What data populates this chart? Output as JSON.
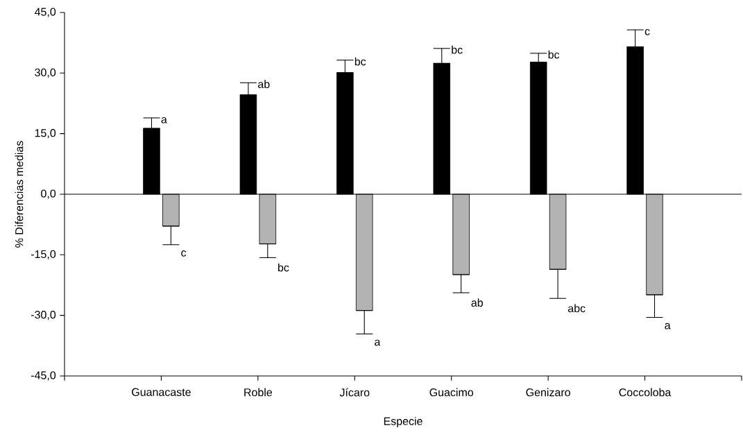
{
  "chart_data": {
    "type": "bar",
    "xlabel": "Especie",
    "ylabel": "% Diferencias medias",
    "categories": [
      "Guanacaste",
      "Roble",
      "Jícaro",
      "Guacimo",
      "Genizaro",
      "Coccoloba"
    ],
    "series": [
      {
        "color": "#000000",
        "values": [
          16.3,
          24.6,
          30.1,
          32.4,
          32.7,
          36.5
        ],
        "errors": [
          [
            16.3,
            18.9
          ],
          [
            24.6,
            27.6
          ],
          [
            30.1,
            33.2
          ],
          [
            32.4,
            36.1
          ],
          [
            32.7,
            34.9
          ],
          [
            36.5,
            40.7
          ]
        ]
      },
      {
        "color": "#b3b3b3",
        "values": [
          -7.9,
          -12.3,
          -28.8,
          -19.9,
          -18.6,
          -24.9
        ],
        "errors": [
          [
            -12.5,
            -7.9
          ],
          [
            -15.7,
            -12.3
          ],
          [
            -34.6,
            -28.8
          ],
          [
            -24.4,
            -19.9
          ],
          [
            -25.8,
            -18.6
          ],
          [
            -30.5,
            -24.9
          ]
        ]
      }
    ],
    "ylim": [
      -45,
      45
    ],
    "yticks": [
      {
        "value": -45,
        "label": "-45,0"
      },
      {
        "value": -30,
        "label": "-30,0"
      },
      {
        "value": -15,
        "label": "-15,0"
      },
      {
        "value": 0,
        "label": "0,0"
      },
      {
        "value": 15,
        "label": "15,0"
      },
      {
        "value": 30,
        "label": "30,0"
      },
      {
        "value": 45,
        "label": "45,0"
      }
    ],
    "ref_lines": [
      {
        "axis": "y",
        "value": 0
      }
    ],
    "annotations": [
      {
        "text": "a",
        "x": "Guanacaste",
        "y": 18.9
      },
      {
        "text": "ab",
        "x": "Roble",
        "y": 27.6
      },
      {
        "text": "bc",
        "x": "Jícaro",
        "y": 33.2
      },
      {
        "text": "bc",
        "x": "Guacimo",
        "y": 36.1
      },
      {
        "text": "bc",
        "x": "Genizaro",
        "y": 34.9
      },
      {
        "text": "c",
        "x": "Coccoloba",
        "y": 40.7
      },
      {
        "text": "c",
        "x": "Guanacaste",
        "y": -12.5
      },
      {
        "text": "bc",
        "x": "Roble",
        "y": -15.7
      },
      {
        "text": "a",
        "x": "Jícaro",
        "y": -34.6
      },
      {
        "text": "ab",
        "x": "Guacimo",
        "y": -24.4
      },
      {
        "text": "abc",
        "x": "Genizaro",
        "y": -25.8
      },
      {
        "text": "a",
        "x": "Coccoloba",
        "y": -30.5
      }
    ]
  }
}
